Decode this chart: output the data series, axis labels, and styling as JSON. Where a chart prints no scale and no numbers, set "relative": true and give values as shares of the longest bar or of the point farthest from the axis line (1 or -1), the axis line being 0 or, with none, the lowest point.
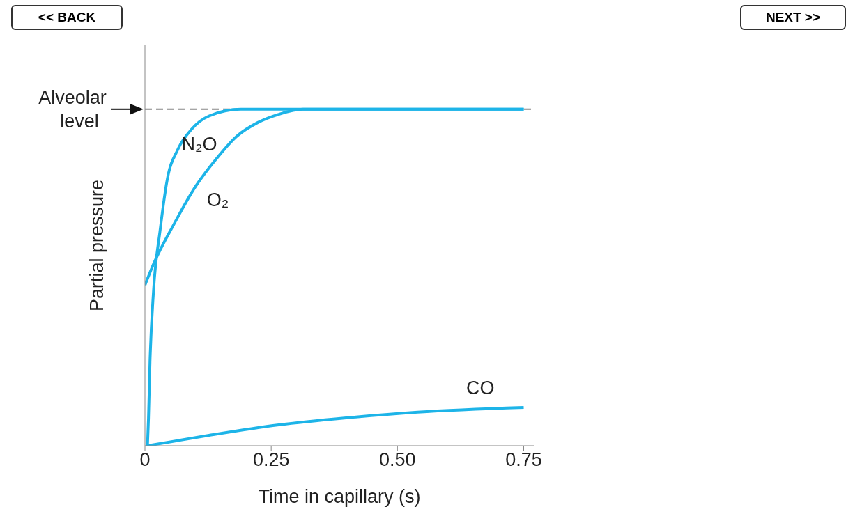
{
  "chart_data": {
    "type": "line",
    "relative": true,
    "xlabel": "Time in capillary (s)",
    "ylabel": "Partial pressure",
    "xlim": [
      0,
      0.77
    ],
    "xticks": [
      0,
      0.25,
      {
        "value": 0.5,
        "label": "0.50"
      },
      0.75
    ],
    "series": [
      {
        "name": "N₂O",
        "color": "#1db4e8",
        "x": [
          0.005,
          0.007,
          0.01,
          0.017,
          0.03,
          0.044,
          0.065,
          0.092,
          0.127,
          0.19,
          0.75
        ],
        "values": [
          0,
          0.08,
          0.25,
          0.46,
          0.64,
          0.79,
          0.88,
          0.94,
          0.98,
          1,
          1
        ]
      },
      {
        "name": "O₂",
        "color": "#1db4e8",
        "x": [
          0,
          0.017,
          0.058,
          0.1,
          0.14,
          0.182,
          0.223,
          0.265,
          0.313,
          0.75
        ],
        "values": [
          0.477,
          0.54,
          0.66,
          0.77,
          0.85,
          0.92,
          0.96,
          0.985,
          1,
          1
        ]
      },
      {
        "name": "CO",
        "color": "#1db4e8",
        "x": [
          0.005,
          0.127,
          0.265,
          0.4,
          0.54,
          0.75
        ],
        "values": [
          0,
          0.031,
          0.062,
          0.083,
          0.1,
          0.114
        ]
      }
    ],
    "ref_lines": [
      {
        "axis": "y",
        "value": 1,
        "label": "Alveolar level",
        "color": "#888888",
        "line_style": "dashed"
      }
    ],
    "annotations": [
      "<< BACK",
      "NEXT >>"
    ]
  }
}
